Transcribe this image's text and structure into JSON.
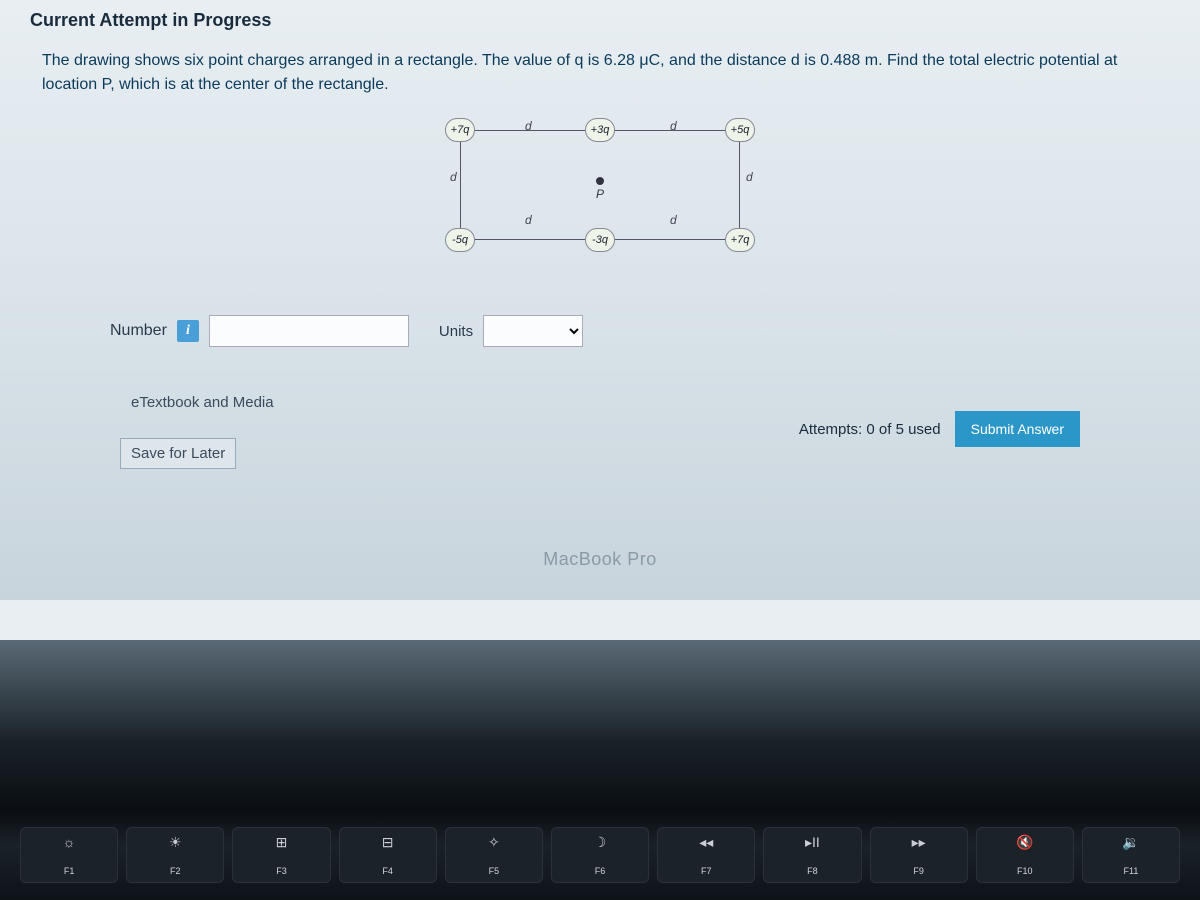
{
  "section_title": "Current Attempt in Progress",
  "question_text": "The drawing shows six point charges arranged in a rectangle. The value of q is 6.28 μC, and the distance d is 0.488 m. Find the total electric potential at location P, which is at the center of the rectangle.",
  "diagram": {
    "charges": {
      "top_left": "+7q",
      "top_mid": "+3q",
      "top_right": "+5q",
      "bot_left": "-5q",
      "bot_mid": "-3q",
      "bot_right": "+7q"
    },
    "d_label": "d",
    "p_label": "P"
  },
  "answer": {
    "number_label": "Number",
    "number_value": "",
    "number_placeholder": "",
    "units_label": "Units",
    "units_value": ""
  },
  "links": {
    "etextbook": "eTextbook and Media",
    "save": "Save for Later"
  },
  "attempts_text": "Attempts: 0 of 5 used",
  "submit_label": "Submit Answer",
  "macbook_text": "MacBook Pro",
  "fkeys": [
    {
      "icon": "☼",
      "label": "F1"
    },
    {
      "icon": "☀",
      "label": "F2"
    },
    {
      "icon": "⊞",
      "label": "F3"
    },
    {
      "icon": "⊟",
      "label": "F4"
    },
    {
      "icon": "✧",
      "label": "F5"
    },
    {
      "icon": "☽",
      "label": "F6"
    },
    {
      "icon": "◂◂",
      "label": "F7"
    },
    {
      "icon": "▸II",
      "label": "F8"
    },
    {
      "icon": "▸▸",
      "label": "F9"
    },
    {
      "icon": "🔇",
      "label": "F10"
    },
    {
      "icon": "🔉",
      "label": "F11"
    }
  ]
}
